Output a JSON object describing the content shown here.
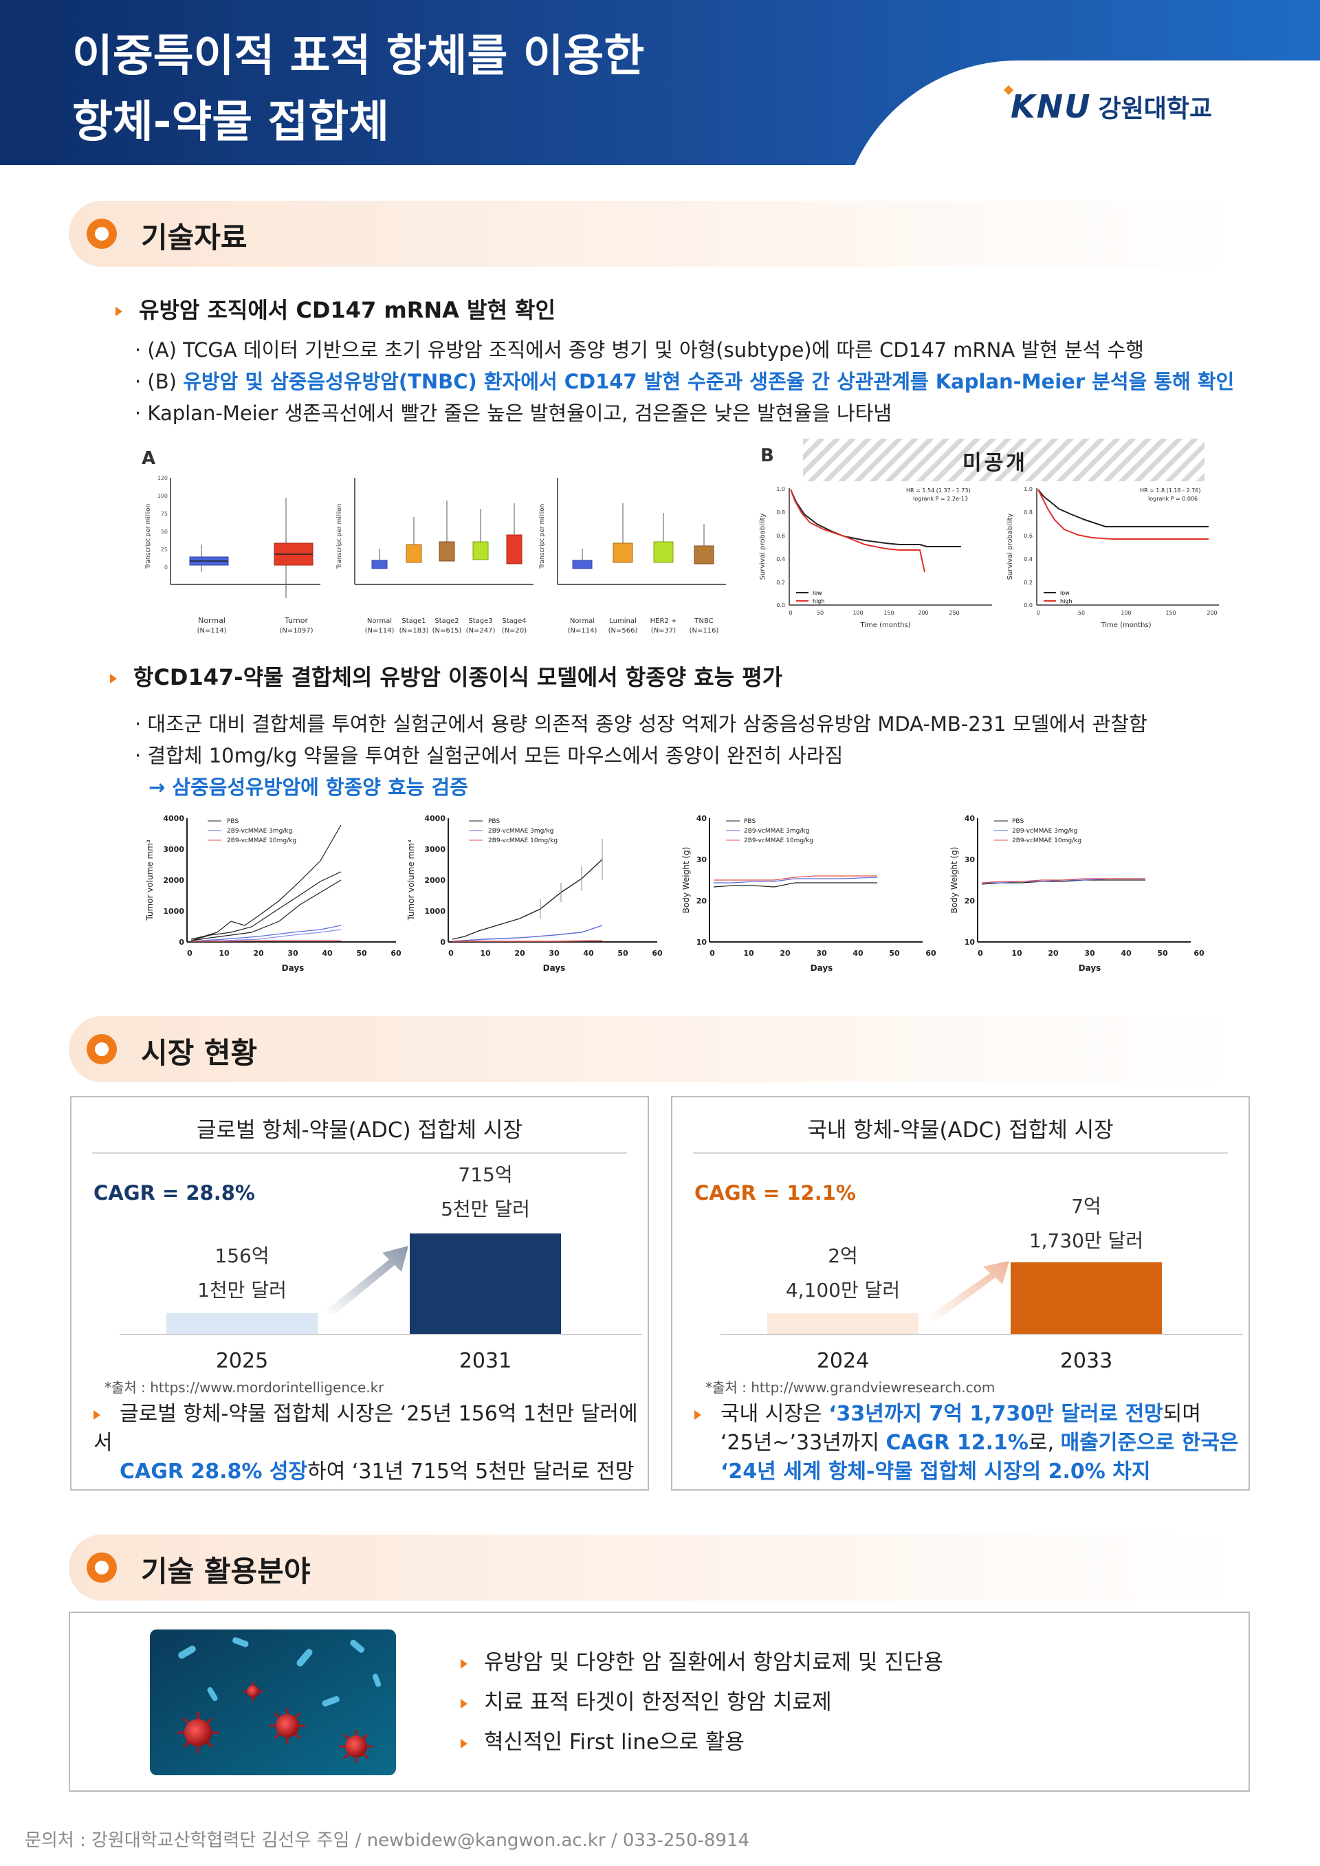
{
  "header": {
    "title_line1": "이중특이적 표적 항체를 이용한",
    "title_line2": "항체-약물 접합체",
    "logo_mark": "KNU",
    "logo_text": "강원대학교"
  },
  "sections": {
    "tech": "기술자료",
    "market": "시장 현황",
    "application": "기술 활용분야"
  },
  "tech": {
    "bullet1_title": "유방암 조직에서 CD147 mRNA 발현 확인",
    "bullet1_lines": [
      "· (A) TCGA 데이터  기반으로  초기  유방암 조직에서 종양 병기 및 아형(subtype)에 따른 CD147 mRNA 발현 분석 수행",
      "· (B) ",
      "유방암 및 삼중음성유방암(TNBC) 환자에서 CD147 발현 수준과 생존율 간 상관관계를 Kaplan-Meier 분석을 통해 확인",
      "· Kaplan-Meier 생존곡선에서 빨간 줄은 높은 발현율이고, 검은줄은 낮은 발현율을 나타냄"
    ],
    "panel_a": "A",
    "panel_b": "B",
    "undisclosed": "미공개",
    "bullet2_title": "항CD147-약물 결합체의 유방암 이종이식 모델에서 항종양 효능 평가",
    "bullet2_lines": [
      "· 대조군  대비  결합체를  투여한  실험군에서 용량 의존적 종양 성장 억제가 삼중음성유방암 MDA-MB-231 모델에서 관찰함",
      "· 결합체 10mg/kg 약물을 투여한 실험군에서 모든 마우스에서 종양이 완전히 사라짐",
      "→ 삼중음성유방암에 항종양 효능 검증"
    ]
  },
  "figures": {
    "box_ylabel": "Transcript per million",
    "box1": {
      "cats": [
        "Normal\n(N=114)",
        "Tumor\n(N=1097)"
      ]
    },
    "box2": {
      "cats": [
        "Normal\n(N=114)",
        "Stage1\n(N=183)",
        "Stage2\n(N=615)",
        "Stage3\n(N=247)",
        "Stage4\n(N=20)"
      ]
    },
    "box3": {
      "cats": [
        "Normal\n(N=114)",
        "Luminal\n(N=566)",
        "HER2+\n(N=37)",
        "TNBC\n(N=116)"
      ]
    },
    "km1": {
      "hr": "HR = 1.54 (1.37 - 1.73)",
      "logrank": "logrank  P = 2.2e-13",
      "legend": [
        "low",
        "high"
      ],
      "xlabel": "Time (months)",
      "ylabel": "Survival probability",
      "xticks": [
        "0",
        "50",
        "100",
        "150",
        "200",
        "250"
      ]
    },
    "km2": {
      "hr": "HR = 1.8 (1.18 - 2.76)",
      "logrank": "logrank  P = 0.006",
      "legend": [
        "low",
        "high"
      ],
      "xlabel": "Time (months)",
      "ylabel": "Survival probability",
      "xticks": [
        "0",
        "50",
        "100",
        "150",
        "200"
      ]
    },
    "tumor_legend": [
      "PBS",
      "2B9-vcMMAE 3mg/kg",
      "2B9-vcMMAE 10mg/kg"
    ],
    "tumor_ylabel": "Tumor volume mm³",
    "weight_ylabel": "Body Weight (g)",
    "days": "Days",
    "x_ticks": [
      "0",
      "10",
      "20",
      "30",
      "40",
      "50",
      "60"
    ],
    "tumor_yticks": [
      "0",
      "1000",
      "2000",
      "3000",
      "4000"
    ],
    "weight_yticks": [
      "10",
      "20",
      "30",
      "40"
    ]
  },
  "market": {
    "global": {
      "title": "글로벌 항체-약물(ADC) 접합체 시장",
      "cagr": "CAGR = 28.8%",
      "bar1_line1": "156억",
      "bar1_line2": "1천만 달러",
      "bar2_line1": "715억",
      "bar2_line2": "5천만 달러",
      "year1": "2025",
      "year2": "2031",
      "source": "*출처 : https://www.mordorintelligence.kr",
      "text_a": "글로벌 항체-약물 접합체 시장은 ‘25년 156억 1천만 달러에서",
      "text_b1": "CAGR 28.8% 성장",
      "text_b2": "하여 ‘31년 715억 5천만 달러로 전망",
      "color1": "#dbe7f4",
      "color2": "#173a6a"
    },
    "domestic": {
      "title": "국내 항체-약물(ADC) 접합체 시장",
      "cagr": "CAGR = 12.1%",
      "bar1_line1": "2억",
      "bar1_line2": "4,100만 달러",
      "bar2_line1": "7억",
      "bar2_line2": "1,730만 달러",
      "year1": "2024",
      "year2": "2033",
      "source": "*출처 : http://www.grandviewresearch.com",
      "text_a1": "국내 시장은 ",
      "text_a2": "‘33년까지 7억 1,730만 달러로 전망",
      "text_a3": "되며",
      "text_b1": "‘25년~’33년까지 ",
      "text_b2": "CAGR 12.1%",
      "text_b3": "로, ",
      "text_b4": "매출기준으로 한국은",
      "text_c": "‘24년 세계 항체-약물 접합체 시장의 2.0% 차지",
      "color1": "#fbe9dc",
      "color2": "#d5620e"
    }
  },
  "application": {
    "items": [
      "유방암 및 다양한 암 질환에서 항암치료제 및 진단용",
      "치료 표적 타겟이 한정적인 항암 치료제",
      "혁신적인 First line으로 활용"
    ]
  },
  "footer": "문의처 : 강원대학교산학협력단 김선우 주임  /  newbidew@kangwon.ac.kr  /  033-250-8914",
  "colors": {
    "accent": "#f07a1a",
    "blue_text": "#1a6fd0",
    "navy": "#123b7a"
  }
}
